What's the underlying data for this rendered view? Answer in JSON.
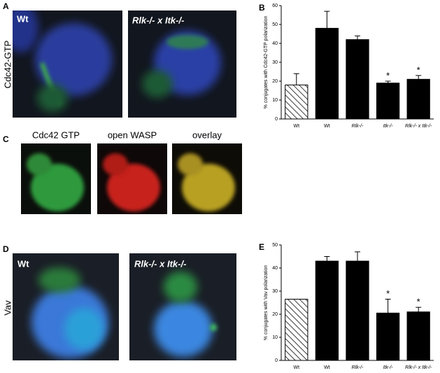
{
  "panels": {
    "A": {
      "label": "A",
      "side_label": "Cdc42-GTP",
      "images": [
        "Wt",
        "Rlk-/- x Itk-/-"
      ]
    },
    "C": {
      "label": "C",
      "images": [
        "Cdc42 GTP",
        "open WASP",
        "overlay"
      ]
    },
    "D": {
      "label": "D",
      "side_label": "Vav",
      "images": [
        "Wt",
        "Rlk-/- x Itk-/-"
      ]
    }
  },
  "chart_data": [
    {
      "type": "bar",
      "panel_label": "B",
      "y_label": "% conjugates with Cdc42-GTP polarization",
      "categories": [
        "Wt",
        "Wt",
        "Rlk-/-",
        "Itk-/-",
        "Rlk-/- x Itk-/-"
      ],
      "values": [
        18,
        48,
        42,
        19,
        21
      ],
      "errors": [
        6,
        9,
        2,
        1,
        2
      ],
      "hatched": [
        true,
        false,
        false,
        false,
        false
      ],
      "color": "#000000",
      "ylim": [
        0,
        60
      ],
      "yticks": [
        0,
        10,
        20,
        30,
        40,
        50,
        60
      ],
      "annotations": [
        {
          "text": "*",
          "category": 3
        },
        {
          "text": "*",
          "category": 4
        }
      ]
    },
    {
      "type": "bar",
      "panel_label": "E",
      "y_label": "% conjugates with Vav polarization",
      "categories": [
        "Wt",
        "Wt",
        "Rlk-/-",
        "Itk-/-",
        "Rlk-/- x Itk-/-"
      ],
      "values": [
        26.5,
        43,
        43,
        20.5,
        21
      ],
      "errors": [
        null,
        2,
        4,
        6,
        2
      ],
      "hatched": [
        true,
        false,
        false,
        false,
        false
      ],
      "color": "#000000",
      "ylim": [
        0,
        50
      ],
      "yticks": [
        0,
        10,
        20,
        30,
        40,
        50
      ],
      "annotations": [
        {
          "text": "*",
          "category": 3
        },
        {
          "text": "*",
          "category": 4
        }
      ]
    }
  ]
}
